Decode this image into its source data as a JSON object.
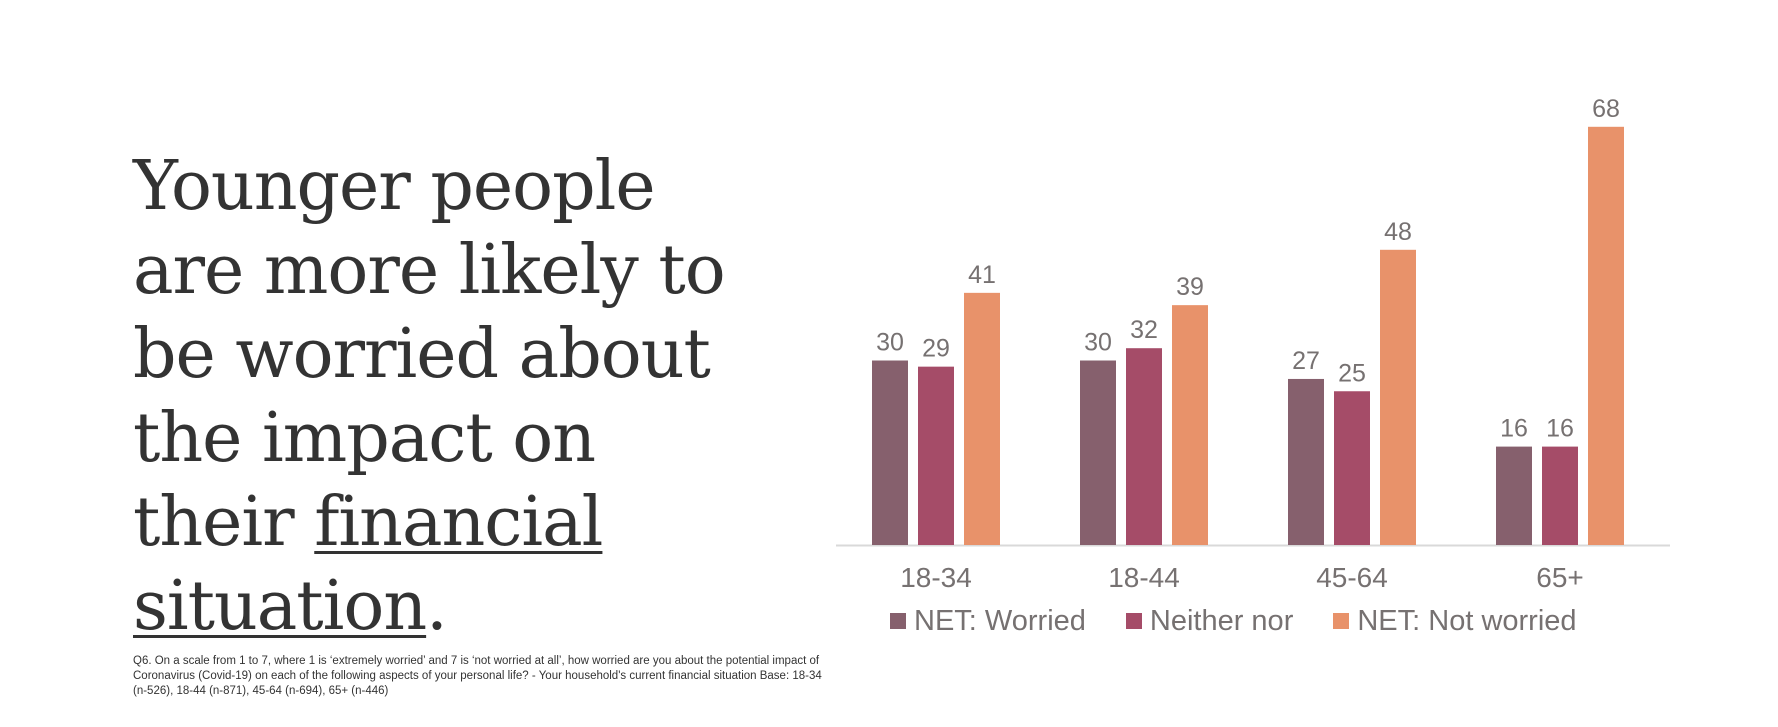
{
  "headline": {
    "text_before": "Younger people are more likely to be worried about the impact on their",
    "underlined": "financial situation",
    "text_after": "."
  },
  "footnote": "Q6. On a scale from 1 to 7, where 1 is ‘extremely worried’ and 7 is ‘not worried at all’, how worried are you about the potential impact of Coronavirus (Covid-19) on each of the following aspects of your personal life? - Your household's current financial situation  Base: 18-34 (n-526), 18-44 (n-871), 45-64 (n-694), 65+ (n-446)",
  "chart_data": {
    "type": "bar",
    "categories": [
      "18-34",
      "18-44",
      "45-64",
      "65+"
    ],
    "series": [
      {
        "name": "NET: Worried",
        "values": [
          30,
          30,
          27,
          16
        ],
        "color": "#86606D"
      },
      {
        "name": "Neither nor",
        "values": [
          29,
          32,
          25,
          16
        ],
        "color": "#A54C68"
      },
      {
        "name": "NET: Not worried",
        "values": [
          41,
          39,
          48,
          68
        ],
        "color": "#E8926A"
      }
    ],
    "ylim": [
      0,
      70
    ],
    "grid": false,
    "legend_position": "bottom",
    "data_labels": true
  }
}
